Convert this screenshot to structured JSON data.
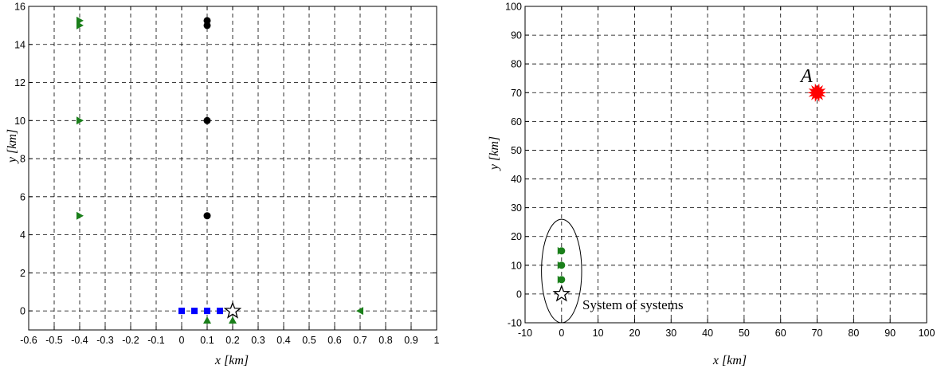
{
  "chart_data": [
    {
      "type": "scatter",
      "xlabel": "x [km]",
      "ylabel": "y [km]",
      "xlim": [
        -0.6,
        1.0
      ],
      "ylim": [
        -1,
        16
      ],
      "xticks": [
        -0.6,
        -0.5,
        -0.4,
        -0.3,
        -0.2,
        -0.1,
        0,
        0.1,
        0.2,
        0.3,
        0.4,
        0.5,
        0.6,
        0.7,
        0.8,
        0.9,
        1
      ],
      "xtick_labels": [
        "-0.6",
        "-0.5",
        "-0.4",
        "-0.3",
        "-0.2",
        "-0.1",
        "0",
        "0.1",
        "0.2",
        "0.3",
        "0.4",
        "0.5",
        "0.6",
        "0.7",
        "0.8",
        "0.9",
        "1"
      ],
      "yticks": [
        0,
        2,
        4,
        6,
        8,
        10,
        12,
        14,
        16
      ],
      "ytick_labels": [
        "0",
        "2",
        "4",
        "6",
        "8",
        "10",
        "12",
        "14",
        "16"
      ],
      "grid": true,
      "series": [
        {
          "marker": "triangle-right",
          "color": "#1a7f1a",
          "points": [
            [
              -0.4,
              15.25
            ],
            [
              -0.4,
              15.0
            ],
            [
              -0.4,
              10.0
            ],
            [
              -0.4,
              5.0
            ]
          ]
        },
        {
          "marker": "circle",
          "color": "#000000",
          "points": [
            [
              0.1,
              15.25
            ],
            [
              0.1,
              15.0
            ],
            [
              0.1,
              10.0
            ],
            [
              0.1,
              5.0
            ]
          ]
        },
        {
          "marker": "square",
          "color": "#0000ff",
          "points": [
            [
              0.0,
              0
            ],
            [
              0.05,
              0
            ],
            [
              0.1,
              0
            ],
            [
              0.15,
              0
            ]
          ]
        },
        {
          "marker": "triangle-up",
          "color": "#1a7f1a",
          "points": [
            [
              0.1,
              -0.5
            ],
            [
              0.2,
              -0.5
            ]
          ]
        },
        {
          "marker": "triangle-left",
          "color": "#1a7f1a",
          "points": [
            [
              0.7,
              0
            ]
          ]
        },
        {
          "marker": "star",
          "color": "#ffffff",
          "points": [
            [
              0.2,
              0
            ]
          ]
        }
      ]
    },
    {
      "type": "scatter",
      "xlabel": "x [km]",
      "ylabel": "y [km]",
      "xlim": [
        -10,
        100
      ],
      "ylim": [
        -10,
        100
      ],
      "xticks": [
        -10,
        0,
        10,
        20,
        30,
        40,
        50,
        60,
        70,
        80,
        90,
        100
      ],
      "xtick_labels": [
        "-10",
        "0",
        "10",
        "20",
        "30",
        "40",
        "50",
        "60",
        "70",
        "80",
        "90",
        "100"
      ],
      "yticks": [
        -10,
        0,
        10,
        20,
        30,
        40,
        50,
        60,
        70,
        80,
        90,
        100
      ],
      "ytick_labels": [
        "-10",
        "0",
        "10",
        "20",
        "30",
        "40",
        "50",
        "60",
        "70",
        "80",
        "90",
        "100"
      ],
      "grid": true,
      "series": [
        {
          "marker": "circle",
          "color": "#1a7f1a",
          "points": [
            [
              0,
              15
            ],
            [
              0,
              10
            ],
            [
              0,
              5
            ]
          ]
        },
        {
          "marker": "star",
          "color": "#ffffff",
          "points": [
            [
              0,
              0
            ]
          ]
        },
        {
          "marker": "burst",
          "color": "#ff0000",
          "points": [
            [
              70,
              70
            ]
          ]
        }
      ],
      "annotations": [
        {
          "text": "A",
          "x": 70,
          "y": 70
        },
        {
          "text": "System of systems",
          "x": 0,
          "y": 0
        }
      ],
      "ellipse": {
        "cx": 0,
        "cy": 8,
        "rx": 5.5,
        "ry": 18
      }
    }
  ]
}
